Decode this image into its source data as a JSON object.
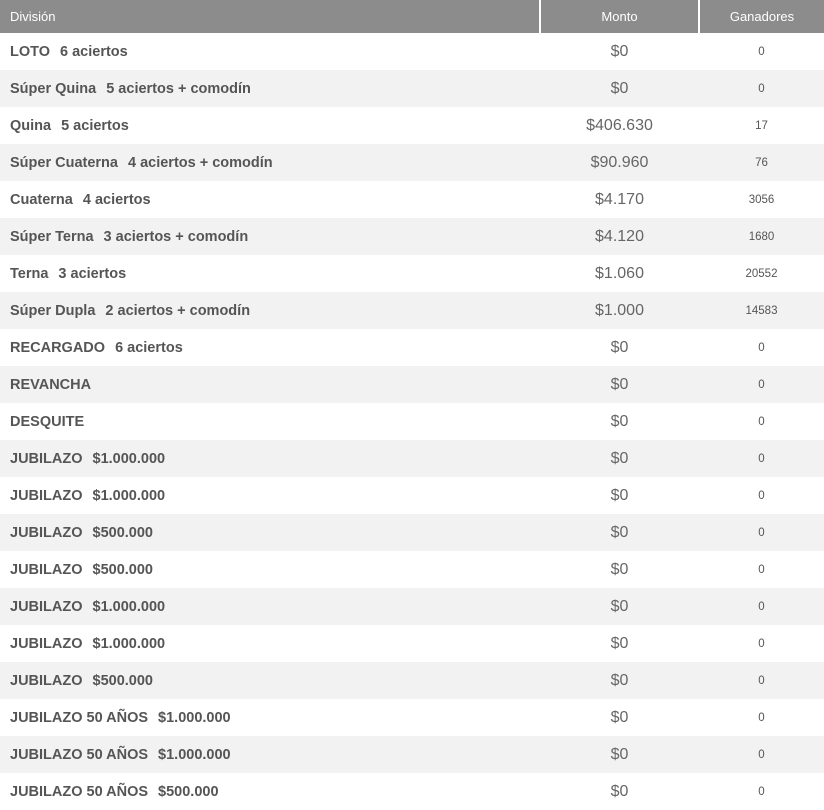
{
  "header": {
    "division": "División",
    "monto": "Monto",
    "ganadores": "Ganadores"
  },
  "rows": [
    {
      "name": "LOTO",
      "detail": "6 aciertos",
      "monto": "$0",
      "ganadores": "0"
    },
    {
      "name": "Súper Quina",
      "detail": "5 aciertos + comodín",
      "monto": "$0",
      "ganadores": "0"
    },
    {
      "name": "Quina",
      "detail": "5 aciertos",
      "monto": "$406.630",
      "ganadores": "17"
    },
    {
      "name": "Súper Cuaterna",
      "detail": "4 aciertos + comodín",
      "monto": "$90.960",
      "ganadores": "76"
    },
    {
      "name": "Cuaterna",
      "detail": "4 aciertos",
      "monto": "$4.170",
      "ganadores": "3056"
    },
    {
      "name": "Súper Terna",
      "detail": "3 aciertos + comodín",
      "monto": "$4.120",
      "ganadores": "1680"
    },
    {
      "name": "Terna",
      "detail": "3 aciertos",
      "monto": "$1.060",
      "ganadores": "20552"
    },
    {
      "name": "Súper Dupla",
      "detail": "2 aciertos + comodín",
      "monto": "$1.000",
      "ganadores": "14583"
    },
    {
      "name": "RECARGADO",
      "detail": "6 aciertos",
      "monto": "$0",
      "ganadores": "0"
    },
    {
      "name": "REVANCHA",
      "detail": "",
      "monto": "$0",
      "ganadores": "0"
    },
    {
      "name": "DESQUITE",
      "detail": "",
      "monto": "$0",
      "ganadores": "0"
    },
    {
      "name": "JUBILAZO",
      "detail": "$1.000.000",
      "monto": "$0",
      "ganadores": "0"
    },
    {
      "name": "JUBILAZO",
      "detail": "$1.000.000",
      "monto": "$0",
      "ganadores": "0"
    },
    {
      "name": "JUBILAZO",
      "detail": "$500.000",
      "monto": "$0",
      "ganadores": "0"
    },
    {
      "name": "JUBILAZO",
      "detail": "$500.000",
      "monto": "$0",
      "ganadores": "0"
    },
    {
      "name": "JUBILAZO",
      "detail": "$1.000.000",
      "monto": "$0",
      "ganadores": "0"
    },
    {
      "name": "JUBILAZO",
      "detail": "$1.000.000",
      "monto": "$0",
      "ganadores": "0"
    },
    {
      "name": "JUBILAZO",
      "detail": "$500.000",
      "monto": "$0",
      "ganadores": "0"
    },
    {
      "name": "JUBILAZO 50 AÑOS",
      "detail": "$1.000.000",
      "monto": "$0",
      "ganadores": "0"
    },
    {
      "name": "JUBILAZO 50 AÑOS",
      "detail": "$1.000.000",
      "monto": "$0",
      "ganadores": "0"
    },
    {
      "name": "JUBILAZO 50 AÑOS",
      "detail": "$500.000",
      "monto": "$0",
      "ganadores": "0"
    }
  ]
}
